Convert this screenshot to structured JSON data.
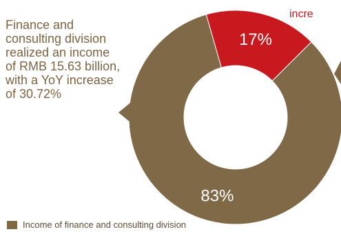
{
  "annotations": {
    "left_text": "Finance and consulting division realized an income of RMB 15.63 billion, with a YoY increase of 30.72%",
    "right_text": "incre"
  },
  "legend": {
    "entries": [
      "Income of finance and consulting division"
    ]
  },
  "colors": {
    "finance_consulting": "#7f6947",
    "other": "#c8191f"
  },
  "chart_data": {
    "type": "pie",
    "donut": true,
    "slices": [
      {
        "label": "83%",
        "value": 83,
        "color": "#7f6947"
      },
      {
        "label": "17%",
        "value": 17,
        "color": "#c8191f"
      }
    ],
    "legend_placement": "bottom-left"
  }
}
